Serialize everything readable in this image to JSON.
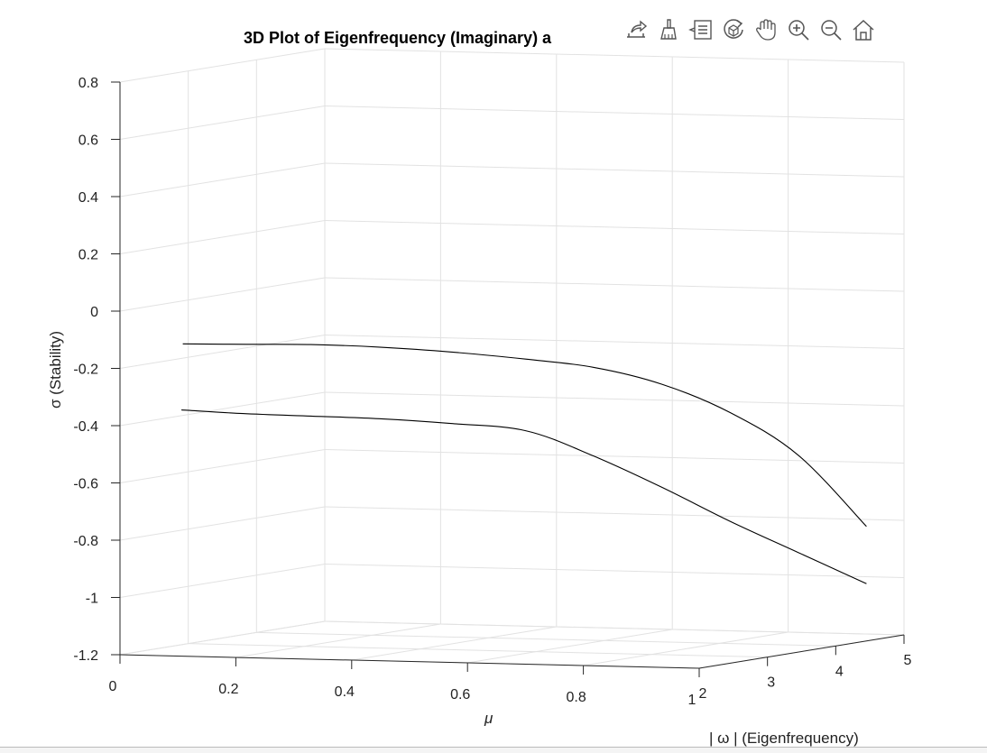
{
  "window": {
    "title": "3D Plot of Eigenfrequency (Imaginary) a"
  },
  "toolbar": {
    "items": [
      {
        "name": "export-icon",
        "label": "Export"
      },
      {
        "name": "brush-icon",
        "label": "Brush"
      },
      {
        "name": "datatips-icon",
        "label": "Data tips"
      },
      {
        "name": "rotate-3d-icon",
        "label": "Rotate 3D"
      },
      {
        "name": "pan-hand-icon",
        "label": "Pan"
      },
      {
        "name": "zoom-in-icon",
        "label": "Zoom in"
      },
      {
        "name": "zoom-out-icon",
        "label": "Zoom out"
      },
      {
        "name": "home-icon",
        "label": "Restore view"
      }
    ]
  },
  "chart_data": {
    "type": "line",
    "projection": "3d",
    "title": "3D Plot of Eigenfrequency (Imaginary) a",
    "xlabel": "μ",
    "ylabel": "| ω | (Eigenfrequency)",
    "zlabel": "σ (Stability)",
    "xlim": [
      0,
      1
    ],
    "ylim": [
      2,
      5
    ],
    "zlim": [
      -1.2,
      0.8
    ],
    "x_ticks": [
      "0",
      "0.2",
      "0.4",
      "0.6",
      "0.8",
      "1"
    ],
    "y_ticks": [
      "2",
      "3",
      "4",
      "5"
    ],
    "z_ticks": [
      "-1.2",
      "-1",
      "-0.8",
      "-0.6",
      "-0.4",
      "-0.2",
      "0",
      "0.2",
      "0.4",
      "0.6",
      "0.8"
    ],
    "grid": true,
    "line_color": "#000000",
    "series": [
      {
        "x": [
          0,
          0.1,
          0.2,
          0.3,
          0.4,
          0.5,
          0.6,
          0.7,
          0.8,
          0.9,
          1.0
        ],
        "y": [
          2.92,
          3.0,
          3.1,
          3.25,
          3.45,
          3.7,
          3.85,
          4.0,
          4.15,
          4.3,
          4.45
        ],
        "z": [
          -0.15,
          -0.15,
          -0.15,
          -0.16,
          -0.18,
          -0.21,
          -0.24,
          -0.3,
          -0.4,
          -0.55,
          -0.8
        ]
      },
      {
        "x": [
          0,
          0.1,
          0.2,
          0.3,
          0.4,
          0.5,
          0.6,
          0.7,
          0.8,
          0.9,
          1.0
        ],
        "y": [
          2.9,
          2.95,
          3.1,
          3.25,
          3.45,
          3.7,
          3.85,
          4.0,
          4.15,
          4.3,
          4.45
        ],
        "z": [
          -0.38,
          -0.39,
          -0.4,
          -0.41,
          -0.43,
          -0.46,
          -0.55,
          -0.66,
          -0.78,
          -0.89,
          -1.0
        ]
      }
    ]
  }
}
